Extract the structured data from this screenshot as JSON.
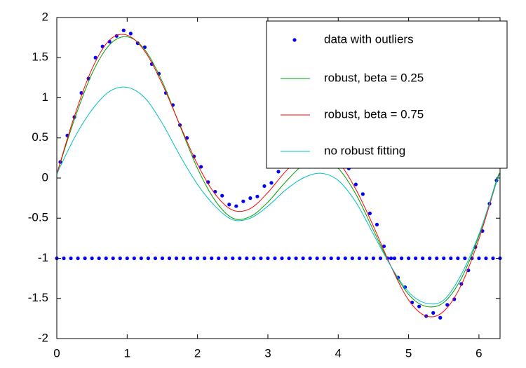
{
  "chart_data": {
    "type": "line",
    "xlim": [
      0,
      6.3
    ],
    "ylim": [
      -2,
      2
    ],
    "xticks": [
      0,
      1,
      2,
      3,
      4,
      5,
      6
    ],
    "yticks": [
      -2,
      -1.5,
      -1,
      -0.5,
      0,
      0.5,
      1,
      1.5,
      2
    ],
    "legend": "northeast",
    "series": [
      {
        "name": "data with outliers",
        "color": "#0000ff",
        "style": "markers",
        "x": [
          0,
          0.05,
          0.1,
          0.15,
          0.2,
          0.25,
          0.3,
          0.35,
          0.4,
          0.45,
          0.5,
          0.55,
          0.6,
          0.65,
          0.7,
          0.75,
          0.8,
          0.85,
          0.9,
          0.95,
          1,
          1.05,
          1.1,
          1.15,
          1.2,
          1.25,
          1.3,
          1.35,
          1.4,
          1.45,
          1.5,
          1.55,
          1.6,
          1.65,
          1.7,
          1.75,
          1.8,
          1.85,
          1.9,
          1.95,
          2,
          2.05,
          2.1,
          2.15,
          2.2,
          2.25,
          2.3,
          2.35,
          2.4,
          2.45,
          2.5,
          2.55,
          2.6,
          2.65,
          2.7,
          2.75,
          2.8,
          2.85,
          2.9,
          2.95,
          3,
          3.05,
          3.1,
          3.15,
          3.2,
          3.25,
          3.3,
          3.35,
          3.4,
          3.45,
          3.5,
          3.55,
          3.6,
          3.65,
          3.7,
          3.75,
          3.8,
          3.85,
          3.9,
          3.95,
          4,
          4.05,
          4.1,
          4.15,
          4.2,
          4.25,
          4.3,
          4.35,
          4.4,
          4.45,
          4.5,
          4.55,
          4.6,
          4.65,
          4.7,
          4.75,
          4.8,
          4.85,
          4.9,
          4.95,
          5,
          5.05,
          5.1,
          5.15,
          5.2,
          5.25,
          5.3,
          5.35,
          5.4,
          5.45,
          5.5,
          5.55,
          5.6,
          5.65,
          5.7,
          5.75,
          5.8,
          5.85,
          5.9,
          5.95,
          6,
          6.05,
          6.1,
          6.15,
          6.2,
          6.25,
          6.3
        ],
        "values": [
          -1,
          0.2,
          -1,
          0.53,
          -1,
          0.76,
          -1,
          1.06,
          -1,
          1.24,
          -1,
          1.5,
          -1,
          1.64,
          -1,
          1.7,
          -1,
          1.77,
          -1,
          1.84,
          -1,
          1.8,
          -1,
          1.68,
          -1,
          1.63,
          -1,
          1.42,
          -1,
          1.3,
          -1,
          1.06,
          -1,
          0.91,
          -1,
          0.66,
          -1,
          0.5,
          -1,
          0.27,
          -1,
          0.14,
          -1,
          -0.05,
          -1,
          -0.17,
          -1,
          -0.22,
          -1,
          -0.33,
          -1,
          -0.35,
          -1,
          -0.29,
          -1,
          -0.25,
          -1,
          -0.23,
          -1,
          -0.1,
          -1,
          -0.06,
          -1,
          0.08,
          -1,
          0.14,
          -1,
          0.27,
          -1,
          0.31,
          -1,
          0.4,
          -1,
          0.38,
          -1,
          0.44,
          -1,
          0.36,
          -1,
          0.34,
          -1,
          0.2,
          -1,
          0.12,
          -1,
          -0.08,
          -1,
          -0.2,
          -1,
          -0.44,
          -1,
          -0.58,
          -1,
          -0.85,
          -1,
          -1.0,
          -1,
          -1.24,
          -1,
          -1.36,
          -1,
          -1.55,
          -1,
          -1.6,
          -1,
          -1.72,
          -1,
          -1.68,
          -1,
          -1.74,
          -1,
          -1.58,
          -1,
          -1.51,
          -1,
          -1.32,
          -1,
          -1.15,
          -1,
          -0.86,
          -1,
          -0.66,
          -1,
          -0.32,
          -1,
          -0.03,
          -1
        ]
      },
      {
        "name": "robust, beta = 0.25",
        "color": "#00a000",
        "style": "line",
        "x": [
          0,
          0.25,
          0.5,
          0.75,
          1,
          1.25,
          1.5,
          1.75,
          2,
          2.25,
          2.5,
          2.75,
          3,
          3.25,
          3.5,
          3.75,
          4,
          4.25,
          4.5,
          4.75,
          5,
          5.25,
          5.5,
          5.75,
          6,
          6.25,
          6.3
        ],
        "values": [
          0.05,
          0.73,
          1.3,
          1.66,
          1.76,
          1.6,
          1.2,
          0.65,
          0.12,
          -0.28,
          -0.5,
          -0.48,
          -0.3,
          -0.05,
          0.16,
          0.23,
          0.12,
          -0.2,
          -0.65,
          -1.1,
          -1.45,
          -1.6,
          -1.55,
          -1.25,
          -0.72,
          -0.03,
          0.06
        ]
      },
      {
        "name": "robust, beta = 0.75",
        "color": "#ff0000",
        "style": "line",
        "x": [
          0,
          0.25,
          0.5,
          0.75,
          1,
          1.25,
          1.5,
          1.75,
          2,
          2.25,
          2.5,
          2.75,
          3,
          3.25,
          3.5,
          3.75,
          4,
          4.25,
          4.5,
          4.75,
          5,
          5.25,
          5.5,
          5.75,
          6,
          6.25,
          6.3
        ],
        "values": [
          0.05,
          0.77,
          1.36,
          1.72,
          1.78,
          1.58,
          1.17,
          0.66,
          0.17,
          -0.2,
          -0.4,
          -0.38,
          -0.18,
          0.08,
          0.28,
          0.32,
          0.2,
          -0.14,
          -0.6,
          -1.1,
          -1.52,
          -1.72,
          -1.66,
          -1.33,
          -0.76,
          -0.05,
          0.05
        ]
      },
      {
        "name": "no robust fitting",
        "color": "#00c0c0",
        "style": "line",
        "x": [
          0,
          0.25,
          0.5,
          0.75,
          1,
          1.25,
          1.5,
          1.75,
          2,
          2.25,
          2.5,
          2.75,
          3,
          3.25,
          3.5,
          3.75,
          4,
          4.25,
          4.5,
          4.75,
          5,
          5.25,
          5.5,
          5.75,
          6,
          6.25,
          6.3
        ],
        "values": [
          0.05,
          0.5,
          0.85,
          1.08,
          1.13,
          1.0,
          0.68,
          0.28,
          -0.08,
          -0.35,
          -0.52,
          -0.5,
          -0.35,
          -0.15,
          0,
          0.06,
          -0.03,
          -0.3,
          -0.7,
          -1.1,
          -1.42,
          -1.56,
          -1.52,
          -1.2,
          -0.7,
          -0.05,
          0.05
        ]
      }
    ]
  }
}
